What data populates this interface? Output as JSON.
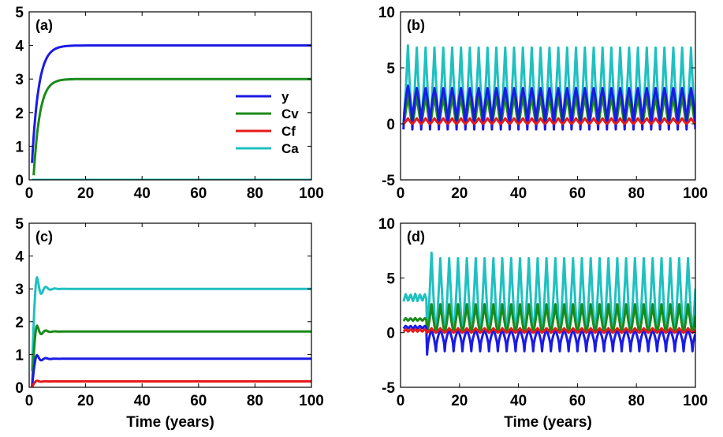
{
  "chart_data": [
    {
      "type": "line",
      "panel_label": "(a)",
      "xlim": [
        0,
        100
      ],
      "ylim": [
        0,
        5
      ],
      "xticks": [
        0,
        20,
        40,
        60,
        80,
        100
      ],
      "yticks": [
        0,
        1,
        2,
        3,
        4,
        5
      ],
      "xlabel": "",
      "ylabel": "",
      "legend": {
        "placement": "center-right",
        "entries": [
          "y",
          "Cv",
          "Cf",
          "Ca"
        ]
      },
      "series": [
        {
          "name": "y",
          "color": "#1a1ae6",
          "shape": "saturating",
          "start": 0.5,
          "final": 4.0,
          "t_start": 1,
          "t_settle": 8
        },
        {
          "name": "Cv",
          "color": "#1a8a1a",
          "shape": "saturating",
          "start": 0.0,
          "final": 3.0,
          "t_start": 1.5,
          "t_settle": 8
        },
        {
          "name": "Cf",
          "color": "#e61a1a",
          "shape": "constant",
          "start": 0.0,
          "final": 0.0,
          "t_start": 1,
          "t_settle": 1
        },
        {
          "name": "Ca",
          "color": "#20c0c0",
          "shape": "constant",
          "start": 0.0,
          "final": 0.0,
          "t_start": 1,
          "t_settle": 1
        }
      ]
    },
    {
      "type": "line",
      "panel_label": "(b)",
      "xlim": [
        0,
        100
      ],
      "ylim": [
        -5,
        10
      ],
      "xticks": [
        0,
        20,
        40,
        60,
        80,
        100
      ],
      "yticks": [
        -5,
        0,
        5,
        10
      ],
      "xlabel": "",
      "ylabel": "",
      "oscillation": {
        "period": 3.0,
        "t_start": 1
      },
      "series": [
        {
          "name": "Ca",
          "color": "#20c0c0",
          "max": 6.8,
          "min": 0.0,
          "first_peak": 7.0
        },
        {
          "name": "Cv",
          "color": "#1a8a1a",
          "max": 2.6,
          "min": 0.0
        },
        {
          "name": "y",
          "color": "#1a1ae6",
          "max": 3.2,
          "min": -0.5,
          "first_peak": 3.4
        },
        {
          "name": "Cf",
          "color": "#e61a1a",
          "max": 0.5,
          "min": 0.0
        }
      ]
    },
    {
      "type": "line",
      "panel_label": "(c)",
      "xlim": [
        0,
        100
      ],
      "ylim": [
        0,
        5
      ],
      "xticks": [
        0,
        20,
        40,
        60,
        80,
        100
      ],
      "yticks": [
        0,
        1,
        2,
        3,
        4,
        5
      ],
      "xlabel": "Time (years)",
      "ylabel": "",
      "series": [
        {
          "name": "Ca",
          "color": "#20c0c0",
          "shape": "damped",
          "start": 0.5,
          "final": 3.0,
          "first_peak": 3.35
        },
        {
          "name": "Cv",
          "color": "#1a8a1a",
          "shape": "damped",
          "start": 0.0,
          "final": 1.7,
          "first_peak": 1.88
        },
        {
          "name": "y",
          "color": "#1a1ae6",
          "shape": "damped",
          "start": 0.0,
          "final": 0.87,
          "first_peak": 0.98
        },
        {
          "name": "Cf",
          "color": "#e61a1a",
          "shape": "damped",
          "start": 0.0,
          "final": 0.18,
          "first_peak": 0.2
        }
      ]
    },
    {
      "type": "line",
      "panel_label": "(d)",
      "xlim": [
        0,
        100
      ],
      "ylim": [
        -5,
        10
      ],
      "xticks": [
        0,
        20,
        40,
        60,
        80,
        100
      ],
      "yticks": [
        -5,
        0,
        5,
        10
      ],
      "xlabel": "Time (years)",
      "ylabel": "",
      "oscillation": {
        "period": 3.0,
        "t_start": 9
      },
      "early": {
        "t_start": 1,
        "t_end": 9
      },
      "series": [
        {
          "name": "Ca",
          "color": "#20c0c0",
          "max": 6.8,
          "min": 0.0,
          "first_peak": 7.3,
          "early_level": 3.2
        },
        {
          "name": "Cv",
          "color": "#1a8a1a",
          "max": 2.6,
          "min": 0.0,
          "early_level": 1.2
        },
        {
          "name": "y",
          "color": "#1a1ae6",
          "max": 0.3,
          "min": -1.7,
          "first_trough": -2.0,
          "early_level": 0.5
        },
        {
          "name": "Cf",
          "color": "#e61a1a",
          "max": 0.4,
          "min": 0.0,
          "early_level": 0.2
        }
      ]
    }
  ]
}
